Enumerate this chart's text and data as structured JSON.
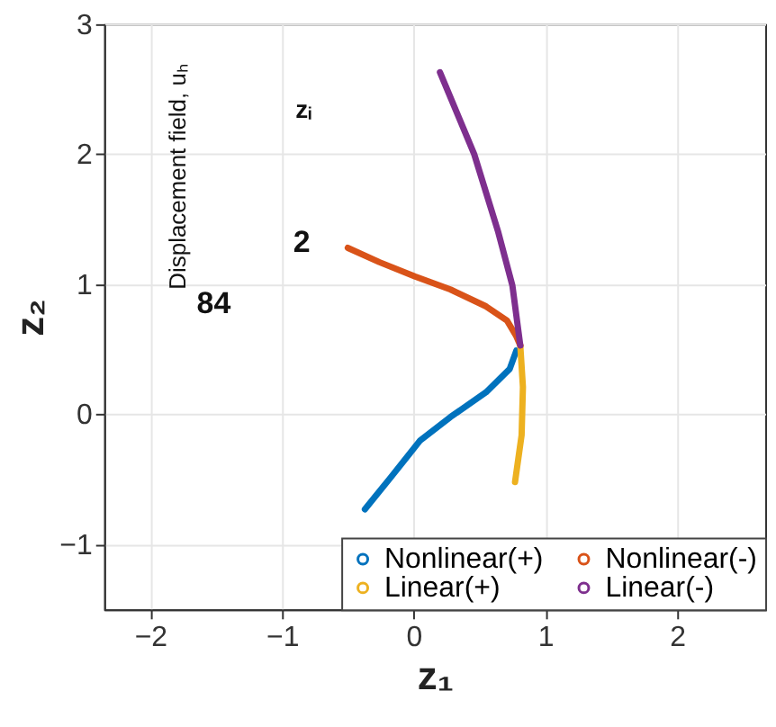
{
  "chart_data": {
    "type": "line",
    "xlabel": "z₁",
    "ylabel": "z₂",
    "xlim": [
      -2.35,
      2.67
    ],
    "ylim": [
      -1.5,
      3
    ],
    "xticks": [
      -2,
      -1,
      0,
      1,
      2
    ],
    "yticks": [
      -1,
      0,
      1,
      2,
      3
    ],
    "grid": true,
    "legend": "bottom right",
    "line_style": "solid",
    "marker": "none",
    "annotations": [
      "Displacement field, uₕ",
      "zᵢ",
      "84",
      "2"
    ],
    "series": [
      {
        "name": "Nonlinear(+)",
        "color": "#0072bd",
        "x": [
          -0.37,
          -0.17,
          0.05,
          0.28,
          0.55,
          0.73,
          0.78
        ],
        "values": [
          -0.73,
          -0.48,
          -0.2,
          -0.02,
          0.17,
          0.35,
          0.49
        ]
      },
      {
        "name": "Linear(+)",
        "color": "#edb120",
        "x": [
          0.81,
          0.83,
          0.82,
          0.77
        ],
        "values": [
          0.53,
          0.21,
          -0.16,
          -0.52
        ]
      },
      {
        "name": "Nonlinear(-)",
        "color": "#d95319",
        "x": [
          -0.5,
          -0.26,
          0.01,
          0.28,
          0.55,
          0.71,
          0.78,
          0.81
        ],
        "values": [
          1.28,
          1.17,
          1.06,
          0.96,
          0.83,
          0.72,
          0.6,
          0.53
        ]
      },
      {
        "name": "Linear(-)",
        "color": "#7e2f8e",
        "x": [
          0.2,
          0.46,
          0.64,
          0.75,
          0.81
        ],
        "values": [
          2.63,
          2.0,
          1.41,
          0.99,
          0.53
        ]
      }
    ]
  }
}
